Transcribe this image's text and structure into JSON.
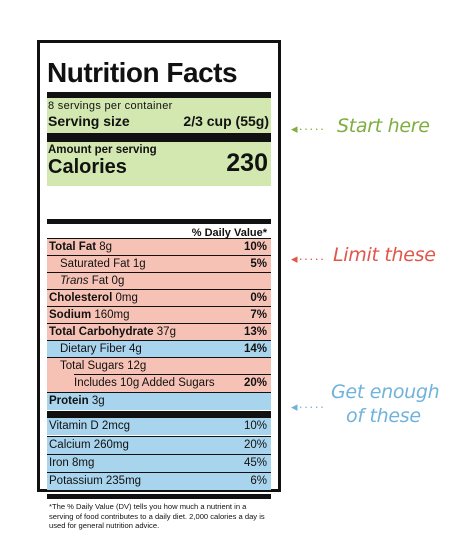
{
  "title": "Nutrition Facts",
  "servings_per_container": "8 servings per container",
  "serving_size_label": "Serving size",
  "serving_size_value": "2/3 cup (55g)",
  "amount_per_serving": "Amount per serving",
  "calories_label": "Calories",
  "calories_value": "230",
  "daily_value_header": "% Daily Value*",
  "nutrients": [
    {
      "name": "Total Fat",
      "amount": "8g",
      "dv": "10%"
    },
    {
      "name": "Saturated Fat",
      "amount": "1g",
      "dv": "5%"
    },
    {
      "name": "Trans",
      "amount": "Fat 0g",
      "dv": ""
    },
    {
      "name": "Cholesterol",
      "amount": "0mg",
      "dv": "0%"
    },
    {
      "name": "Sodium",
      "amount": "160mg",
      "dv": "7%"
    },
    {
      "name": "Total Carbohydrate",
      "amount": "37g",
      "dv": "13%"
    },
    {
      "name": "Dietary Fiber",
      "amount": "4g",
      "dv": "14%"
    },
    {
      "name": "Total Sugars",
      "amount": "12g",
      "dv": ""
    },
    {
      "name": "Includes 10g Added Sugars",
      "amount": "",
      "dv": "20%"
    },
    {
      "name": "Protein",
      "amount": "3g",
      "dv": ""
    }
  ],
  "vitamins": [
    {
      "name": "Vitamin D",
      "amount": "2mcg",
      "dv": "10%"
    },
    {
      "name": "Calcium",
      "amount": "260mg",
      "dv": "20%"
    },
    {
      "name": "Iron",
      "amount": "8mg",
      "dv": "45%"
    },
    {
      "name": "Potassium",
      "amount": "235mg",
      "dv": "6%"
    }
  ],
  "footnote": "*The % Daily Value (DV) tells you how much a nutrient in a serving of food contributes to a daily diet. 2,000 calories a day is used for general nutrition advice.",
  "annotations": {
    "start": "Start here",
    "limit": "Limit these",
    "get_line1": "Get enough",
    "get_line2": "of these",
    "dots": "◂·····"
  },
  "colors": {
    "green": "#d3e8b0",
    "pink": "#f7c2b6",
    "blue": "#a9d4ee",
    "start_note": "#7fae3f",
    "limit_note": "#e2554a",
    "get_note": "#6fb3dc"
  }
}
